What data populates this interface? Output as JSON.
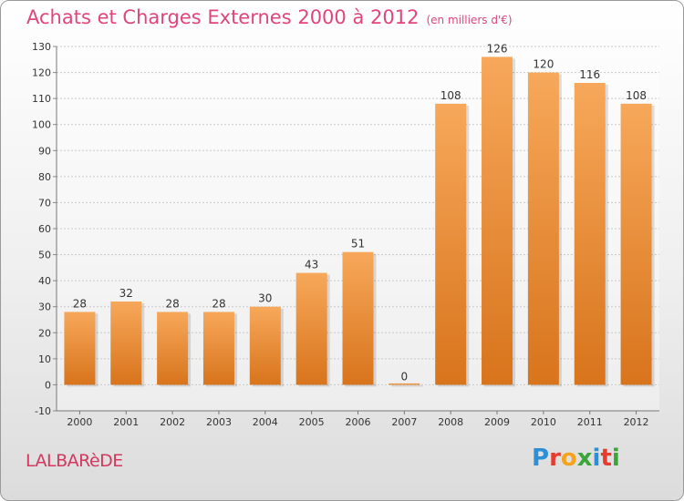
{
  "header": {
    "title": "Achats et Charges Externes 2000 à 2012",
    "unit": "(en milliers d'€)"
  },
  "footer": {
    "commune": "LALBARèDE",
    "logo": {
      "letters": [
        "P",
        "r",
        "o",
        "x",
        "i",
        "t",
        "i"
      ],
      "colors": [
        "#2d8fd6",
        "#e53c2f",
        "#f5a31a",
        "#3aa63a",
        "#2d8fd6",
        "#e53c2f",
        "#3aa63a"
      ]
    }
  },
  "colors": {
    "bar_light": "#f7a85a",
    "bar_dark": "#d8741c",
    "title": "#e0457b",
    "grid": "#c9c9c9"
  },
  "chart_data": {
    "type": "bar",
    "categories": [
      "2000",
      "2001",
      "2002",
      "2003",
      "2004",
      "2005",
      "2006",
      "2007",
      "2008",
      "2009",
      "2010",
      "2011",
      "2012"
    ],
    "values": [
      28,
      32,
      28,
      28,
      30,
      43,
      51,
      0,
      108,
      126,
      120,
      116,
      108
    ],
    "data_labels": [
      "28",
      "32",
      "28",
      "28",
      "30",
      "43",
      "51",
      "0",
      "108",
      "126",
      "120",
      "116",
      "108"
    ],
    "title": "Achats et Charges Externes 2000 à 2012",
    "xlabel": "",
    "ylabel": "",
    "ylim": [
      -10,
      130
    ],
    "yticks": [
      -10,
      0,
      10,
      20,
      30,
      40,
      50,
      60,
      70,
      80,
      90,
      100,
      110,
      120,
      130
    ],
    "ytick_labels": [
      "-10",
      "0",
      "10",
      "20",
      "30",
      "40",
      "50",
      "60",
      "70",
      "80",
      "90",
      "100",
      "110",
      "120",
      "130"
    ],
    "grid": true,
    "legend": "none"
  }
}
